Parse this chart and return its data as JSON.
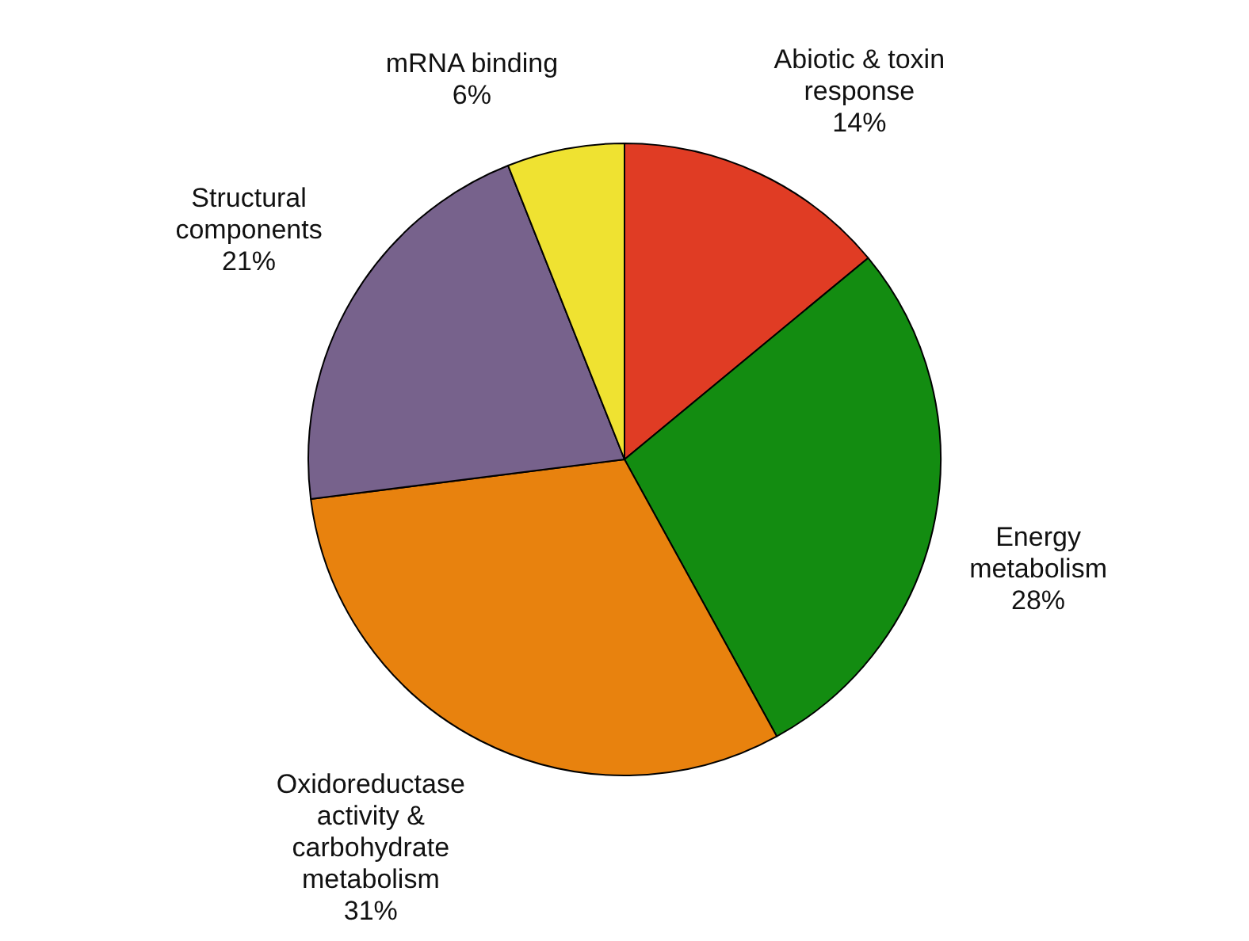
{
  "chart_data": {
    "type": "pie",
    "categories": [
      "Abiotic & toxin response",
      "Energy metabolism",
      "Oxidoreductase activity & carbohydrate metabolism",
      "Structural components",
      "mRNA binding"
    ],
    "values": [
      14,
      28,
      31,
      21,
      6
    ],
    "value_labels": [
      "14%",
      "28%",
      "31%",
      "21%",
      "6%"
    ],
    "colors": [
      "#e03c24",
      "#138c11",
      "#e8820e",
      "#77628c",
      "#efe231"
    ],
    "legend": false
  }
}
